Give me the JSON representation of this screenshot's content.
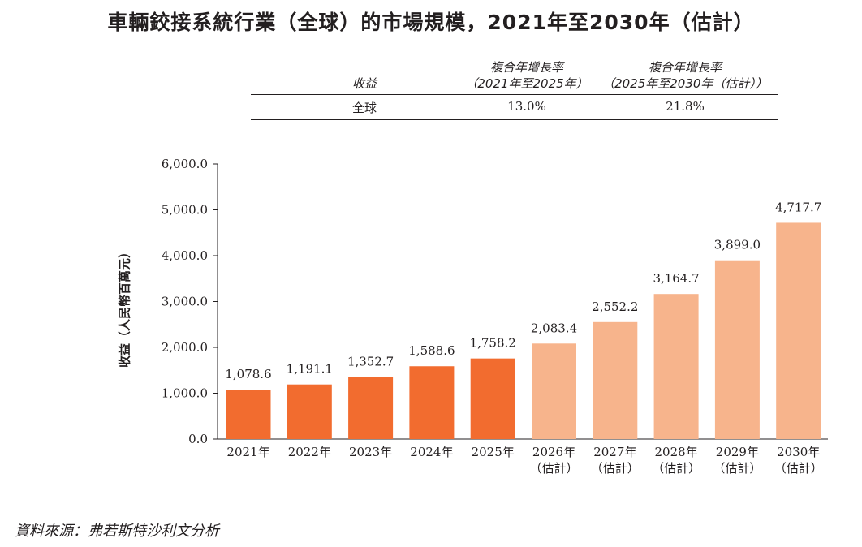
{
  "title": "車輛鉸接系統行業（全球）的市場規模，2021年至2030年（估計）",
  "cagr_table": {
    "header_col1": "收益",
    "header_col2_line1": "複合年增長率",
    "header_col2_line2": "（2021年至2025年）",
    "header_col3_line1": "複合年增長率",
    "header_col3_line2": "（2025年至2030年（估計））",
    "row_label": "全球",
    "row_value1": "13.0%",
    "row_value2": "21.8%"
  },
  "chart_data": {
    "type": "bar",
    "ylabel": "收益（人民幣百萬元）",
    "ylim": [
      0,
      6000
    ],
    "yticks": [
      "0.0",
      "1,000.0",
      "2,000.0",
      "3,000.0",
      "4,000.0",
      "5,000.0",
      "6,000.0"
    ],
    "categories": [
      [
        "2021年"
      ],
      [
        "2022年"
      ],
      [
        "2023年"
      ],
      [
        "2024年"
      ],
      [
        "2025年"
      ],
      [
        "2026年",
        "（估計）"
      ],
      [
        "2027年",
        "（估計）"
      ],
      [
        "2028年",
        "（估計）"
      ],
      [
        "2029年",
        "（估計）"
      ],
      [
        "2030年",
        "（估計）"
      ]
    ],
    "values": [
      1078.6,
      1191.1,
      1352.7,
      1588.6,
      1758.2,
      2083.4,
      2552.2,
      3164.7,
      3899.0,
      4717.7
    ],
    "labels": [
      "1,078.6",
      "1,191.1",
      "1,352.7",
      "1,588.6",
      "1,758.2",
      "2,083.4",
      "2,552.2",
      "3,164.7",
      "3,899.0",
      "4,717.7"
    ],
    "estimated": [
      false,
      false,
      false,
      false,
      false,
      true,
      true,
      true,
      true,
      true
    ],
    "colors": {
      "actual": "#f26c2f",
      "estimated": "#f7b48c",
      "axis": "#231f20"
    }
  },
  "source": "資料來源：弗若斯特沙利文分析"
}
